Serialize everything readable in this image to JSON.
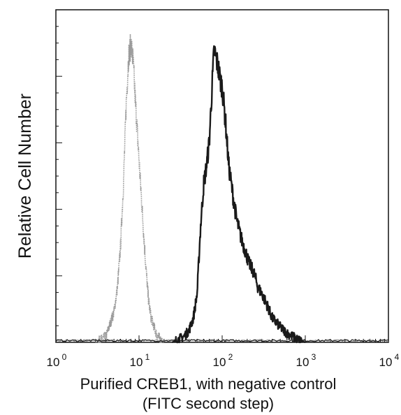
{
  "chart_data": {
    "type": "line",
    "xscale": "log",
    "xlim": [
      1,
      10000
    ],
    "ylim": [
      0,
      100
    ],
    "xticks": [
      {
        "value": 1,
        "base": "10",
        "exp": "0"
      },
      {
        "value": 10,
        "base": "10",
        "exp": "1"
      },
      {
        "value": 100,
        "base": "10",
        "exp": "2"
      },
      {
        "value": 1000,
        "base": "10",
        "exp": "3"
      },
      {
        "value": 10000,
        "base": "10",
        "exp": "4"
      }
    ],
    "ylabel": "Relative Cell Number",
    "xlabel_line1": "Purified CREB1, with negative control",
    "xlabel_line2": "(FITC second step)",
    "grid": false,
    "series": [
      {
        "color": "#9a9a9a",
        "x": [
          3,
          4,
          5,
          5.5,
          6,
          6.5,
          7,
          7.5,
          8,
          8.5,
          9,
          10,
          11,
          12,
          13,
          14,
          16,
          18,
          20
        ],
        "y": [
          0,
          2,
          10,
          18,
          32,
          52,
          78,
          94,
          98,
          92,
          80,
          60,
          42,
          26,
          14,
          8,
          3,
          1,
          0
        ]
      },
      {
        "color": "#1a1a1a",
        "x": [
          25,
          30,
          35,
          40,
          45,
          50,
          55,
          60,
          65,
          70,
          75,
          80,
          85,
          90,
          95,
          100,
          110,
          120,
          135,
          150,
          170,
          190,
          210,
          240,
          270,
          300,
          350,
          400,
          500,
          600,
          700,
          800,
          1000
        ],
        "y": [
          0,
          1,
          2,
          4,
          8,
          16,
          38,
          52,
          58,
          66,
          82,
          96,
          93,
          90,
          86,
          84,
          72,
          58,
          48,
          40,
          34,
          30,
          26,
          23,
          18,
          16,
          12,
          8,
          5,
          3,
          2,
          1,
          0
        ]
      }
    ]
  }
}
